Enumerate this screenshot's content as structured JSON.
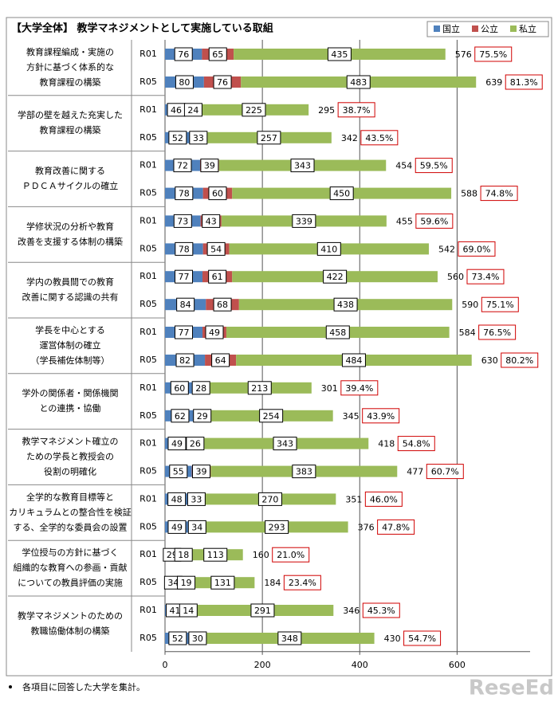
{
  "chart_data": {
    "type": "bar",
    "orientation": "horizontal",
    "stacked": true,
    "title": "【大学全体】 教学マネジメントとして実施している取組",
    "group_labels": [
      [
        "教育課程編成・実施の",
        "方針に基づく体系的な",
        "教育課程の構築"
      ],
      [
        "学部の壁を越えた充実した",
        "教育課程の構築"
      ],
      [
        "教育改善に関する",
        "ＰＤＣＡサイクルの確立"
      ],
      [
        "学修状況の分析や教育",
        "改善を支援する体制の構築"
      ],
      [
        "学内の教員間での教育",
        "改善に関する認識の共有"
      ],
      [
        "学長を中心とする",
        "運営体制の確立",
        "（学長補佐体制等）"
      ],
      [
        "学外の関係者・関係機関",
        "との連携・協働"
      ],
      [
        "教学マネジメント確立の",
        "ための学長と教授会の",
        "役割の明確化"
      ],
      [
        "全学的な教育目標等と",
        "カリキュラムとの整合性を検証",
        "する、全学的な委員会の設置"
      ],
      [
        "学位授与の方針に基づく",
        "組織的な教育への参画・貢献",
        "についての教員評価の実施"
      ],
      [
        "教学マネジメントのための",
        "教職協働体制の構築"
      ]
    ],
    "categories": [
      "R01",
      "R05",
      "R01",
      "R05",
      "R01",
      "R05",
      "R01",
      "R05",
      "R01",
      "R05",
      "R01",
      "R05",
      "R01",
      "R05",
      "R01",
      "R05",
      "R01",
      "R05",
      "R01",
      "R05",
      "R01",
      "R05"
    ],
    "series": [
      {
        "name": "国立",
        "color": "#4f81bd",
        "values": [
          76,
          80,
          46,
          52,
          72,
          78,
          73,
          78,
          77,
          84,
          77,
          82,
          60,
          62,
          49,
          55,
          48,
          49,
          29,
          34,
          41,
          52
        ]
      },
      {
        "name": "公立",
        "color": "#c0504d",
        "values": [
          65,
          76,
          24,
          33,
          39,
          60,
          43,
          54,
          61,
          68,
          49,
          64,
          28,
          29,
          26,
          39,
          33,
          34,
          18,
          19,
          14,
          30
        ]
      },
      {
        "name": "私立",
        "color": "#9bbb59",
        "values": [
          435,
          483,
          225,
          257,
          343,
          450,
          339,
          410,
          422,
          438,
          458,
          484,
          213,
          254,
          343,
          383,
          270,
          293,
          113,
          131,
          291,
          348
        ]
      }
    ],
    "totals": [
      576,
      639,
      295,
      342,
      454,
      588,
      455,
      542,
      560,
      590,
      584,
      630,
      301,
      345,
      418,
      477,
      351,
      376,
      160,
      184,
      346,
      430
    ],
    "share_labels": [
      "75.5%",
      "81.3%",
      "38.7%",
      "43.5%",
      "59.5%",
      "74.8%",
      "59.6%",
      "69.0%",
      "73.4%",
      "75.1%",
      "76.5%",
      "80.2%",
      "39.4%",
      "43.9%",
      "54.8%",
      "60.7%",
      "46.0%",
      "47.8%",
      "21.0%",
      "23.4%",
      "45.3%",
      "54.7%"
    ],
    "xlim": [
      0,
      750
    ],
    "xticks": [
      0,
      200,
      400,
      600
    ],
    "grid": true,
    "legend_position": "top-right",
    "footnote": "各項目に回答した大学を集計。",
    "watermark": "ReseEd"
  }
}
